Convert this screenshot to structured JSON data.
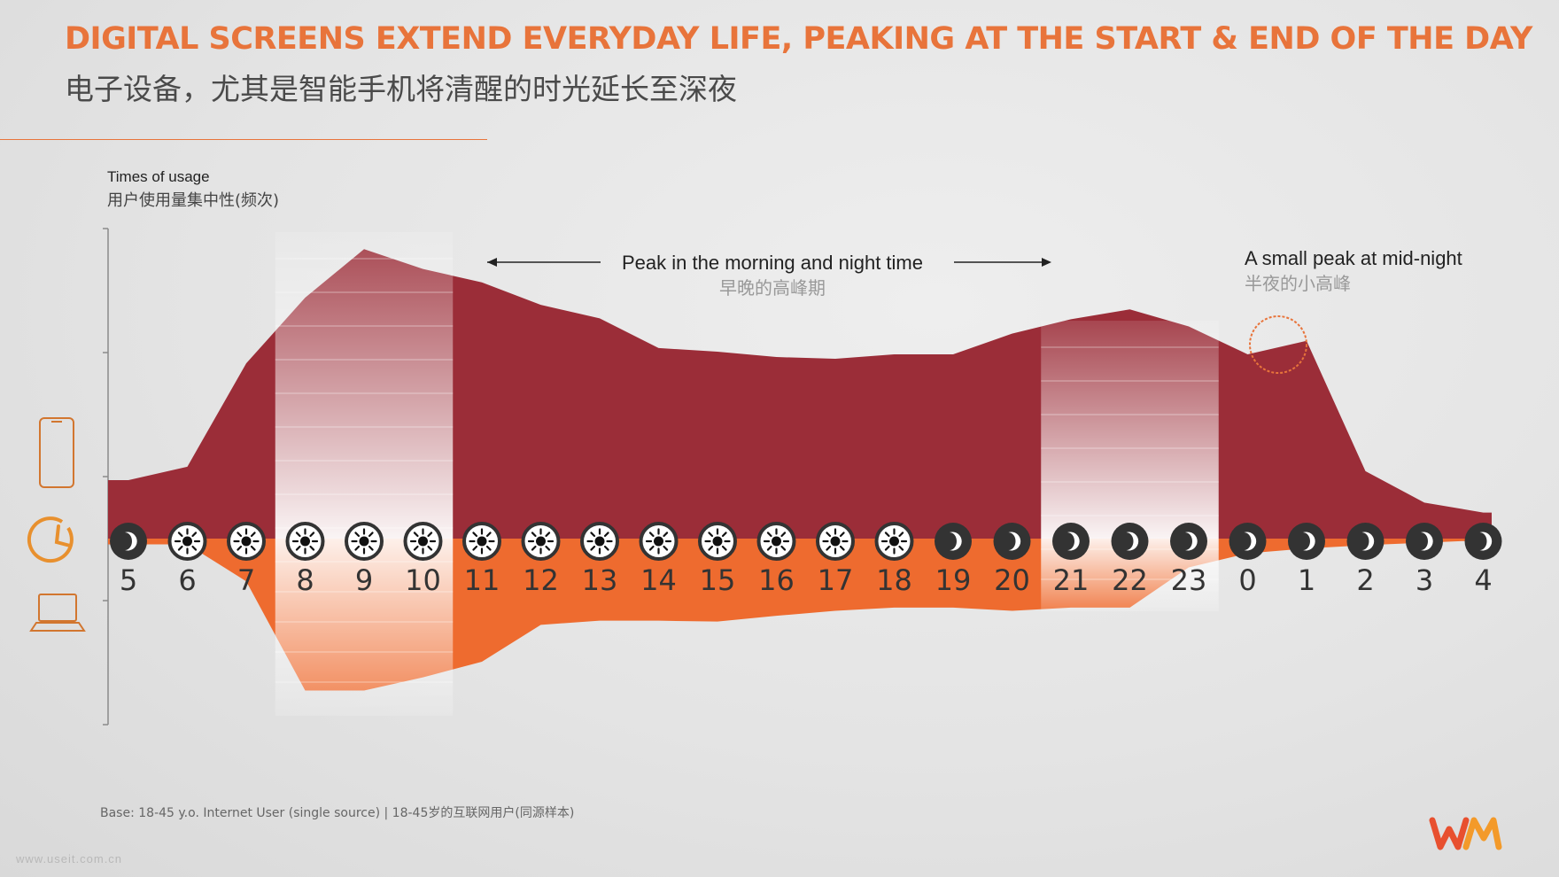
{
  "header": {
    "title": "DIGITAL SCREENS EXTEND EVERYDAY LIFE, PEAKING AT THE START & END OF THE DAY",
    "subtitle": "电子设备，尤其是智能手机将清醒的时光延长至深夜"
  },
  "axis": {
    "label_en": "Times of usage",
    "label_cn": "用户使用量集中性(频次)"
  },
  "annotations": {
    "peak_en": "Peak in the morning and night time",
    "peak_cn": "早晚的高峰期",
    "midnight_en": "A small peak at mid-night",
    "midnight_cn": "半夜的小高峰"
  },
  "footer": {
    "base": "Base: 18-45 y.o. Internet User (single source) | 18-45岁的互联网用户(同源样本)",
    "watermark": "www.useit.com.cn"
  },
  "icons": {
    "device_top": "smartphone-icon",
    "device_mid": "clock-icon",
    "device_bottom": "laptop-icon",
    "day": "sun-icon",
    "night": "moon-icon",
    "logo": "wm-logo-icon"
  },
  "colors": {
    "mobile": "#9b2d38",
    "pc": "#ee6b2f",
    "accent": "#e8743b",
    "night_circle": "#333333"
  },
  "chart_data": {
    "type": "area",
    "x": [
      "5",
      "6",
      "7",
      "8",
      "9",
      "10",
      "11",
      "12",
      "13",
      "14",
      "15",
      "16",
      "17",
      "18",
      "19",
      "20",
      "21",
      "22",
      "23",
      "0",
      "1",
      "2",
      "3",
      "4"
    ],
    "day_night": [
      "night",
      "day",
      "day",
      "day",
      "day",
      "day",
      "day",
      "day",
      "day",
      "day",
      "day",
      "day",
      "day",
      "day",
      "night",
      "night",
      "night",
      "night",
      "night",
      "night",
      "night",
      "night",
      "night",
      "night"
    ],
    "highlight_periods": [
      [
        "8",
        "10"
      ],
      [
        "21",
        "23"
      ]
    ],
    "series": [
      {
        "values": [
          65,
          80,
          195,
          268,
          322,
          300,
          285,
          260,
          245,
          212,
          208,
          202,
          200,
          205,
          205,
          228,
          244,
          255,
          236,
          205,
          220,
          75,
          40,
          29
        ],
        "direction": "up"
      },
      {
        "values": [
          7,
          7,
          52,
          185,
          185,
          169,
          150,
          105,
          100,
          100,
          101,
          94,
          88,
          84,
          84,
          88,
          84,
          84,
          35,
          18,
          12,
          8,
          5,
          2
        ],
        "direction": "down"
      }
    ],
    "ylim_up": [
      0,
      340
    ],
    "ylim_down": [
      0,
      205
    ]
  }
}
